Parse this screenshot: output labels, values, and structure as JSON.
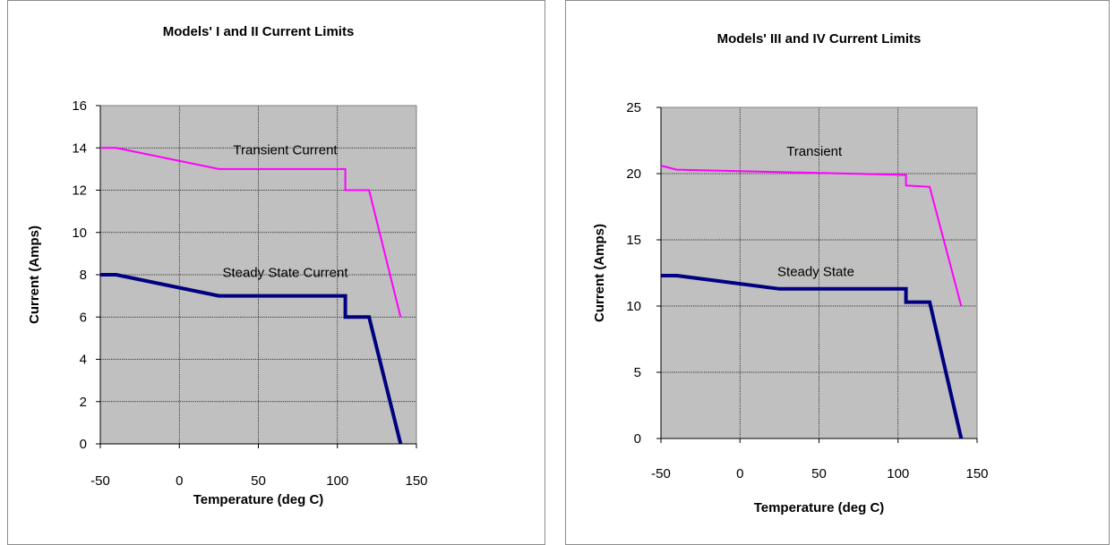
{
  "chart_data": [
    {
      "type": "line",
      "title": "Models' I and II Current Limits",
      "xlabel": "Temperature (deg C)",
      "ylabel": "Current (Amps)",
      "xlim": [
        -50,
        150
      ],
      "ylim": [
        0,
        16
      ],
      "xticks": [
        -50,
        0,
        50,
        100,
        150
      ],
      "yticks": [
        0,
        2,
        4,
        6,
        8,
        10,
        12,
        14,
        16
      ],
      "grid": true,
      "series": [
        {
          "color": "#ff00ff",
          "x": [
            -50,
            -40,
            25,
            105,
            105,
            120,
            140
          ],
          "y": [
            14,
            14,
            13,
            13,
            12,
            12,
            6
          ]
        },
        {
          "color": "#000080",
          "x": [
            -50,
            -40,
            25,
            105,
            105,
            120,
            140
          ],
          "y": [
            8,
            8,
            7,
            7,
            6,
            6,
            0
          ]
        }
      ],
      "annotations": [
        {
          "text": "Transient Current",
          "x": 67,
          "y": 13.9
        },
        {
          "text": "Steady State Current",
          "x": 67,
          "y": 8.1
        }
      ]
    },
    {
      "type": "line",
      "title": "Models' III and IV Current Limits",
      "xlabel": "Temperature (deg C)",
      "ylabel": "Current (Amps)",
      "xlim": [
        -50,
        150
      ],
      "ylim": [
        0,
        25
      ],
      "xticks": [
        -50,
        0,
        50,
        100,
        150
      ],
      "yticks": [
        0,
        5,
        10,
        15,
        20,
        25
      ],
      "grid": true,
      "series": [
        {
          "color": "#ff00ff",
          "x": [
            -50,
            -40,
            105,
            105,
            120,
            140
          ],
          "y": [
            20.6,
            20.3,
            19.9,
            19.1,
            19,
            10
          ]
        },
        {
          "color": "#000080",
          "x": [
            -50,
            -40,
            25,
            105,
            105,
            120,
            140
          ],
          "y": [
            12.3,
            12.3,
            11.3,
            11.3,
            10.3,
            10.3,
            0
          ]
        }
      ],
      "annotations": [
        {
          "text": "Transient",
          "x": 47,
          "y": 21.7
        },
        {
          "text": "Steady State",
          "x": 48,
          "y": 12.6
        }
      ]
    }
  ]
}
